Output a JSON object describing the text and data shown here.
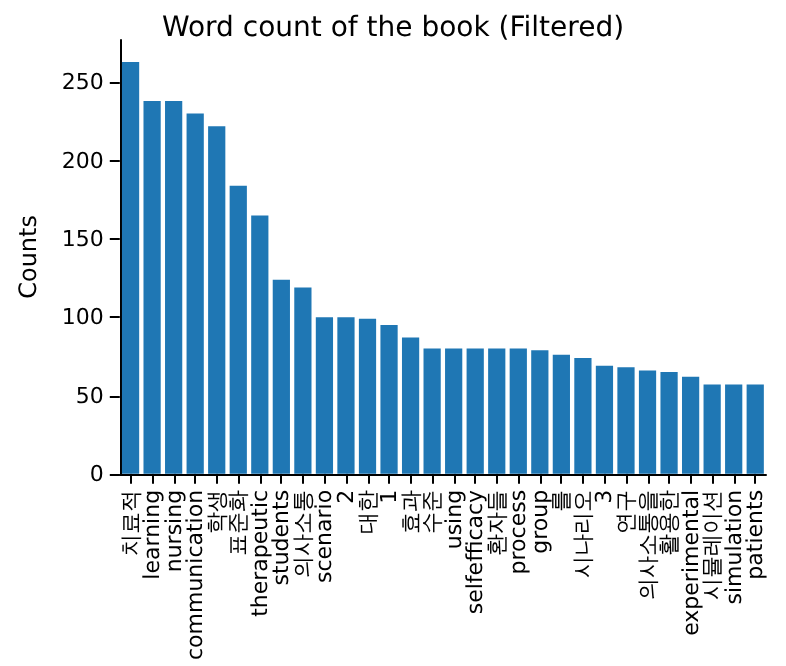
{
  "chart_data": {
    "type": "bar",
    "title": "Word count of the book (Filtered)",
    "ylabel": "Counts",
    "categories": [
      "치료적",
      "learning",
      "nursing",
      "communication",
      "학생",
      "표준화",
      "therapeutic",
      "students",
      "의사소통",
      "scenario",
      "2",
      "대한",
      "1",
      "효과",
      "수준",
      "using",
      "selfefficacy",
      "환자들",
      "process",
      "group",
      "를",
      "시나리오",
      "3",
      "연구",
      "의사소통을",
      "활용한",
      "experimental",
      "시뮬레이션",
      "simulation",
      "patients"
    ],
    "values": [
      263,
      238,
      238,
      230,
      222,
      184,
      165,
      124,
      119,
      100,
      100,
      99,
      95,
      87,
      80,
      80,
      80,
      80,
      80,
      79,
      76,
      74,
      69,
      68,
      66,
      65,
      62,
      57,
      57,
      57
    ],
    "color": "#1f77b4",
    "ylim": [
      0,
      277
    ],
    "yticks": [
      0,
      50,
      100,
      150,
      200,
      250
    ],
    "grid": false
  }
}
